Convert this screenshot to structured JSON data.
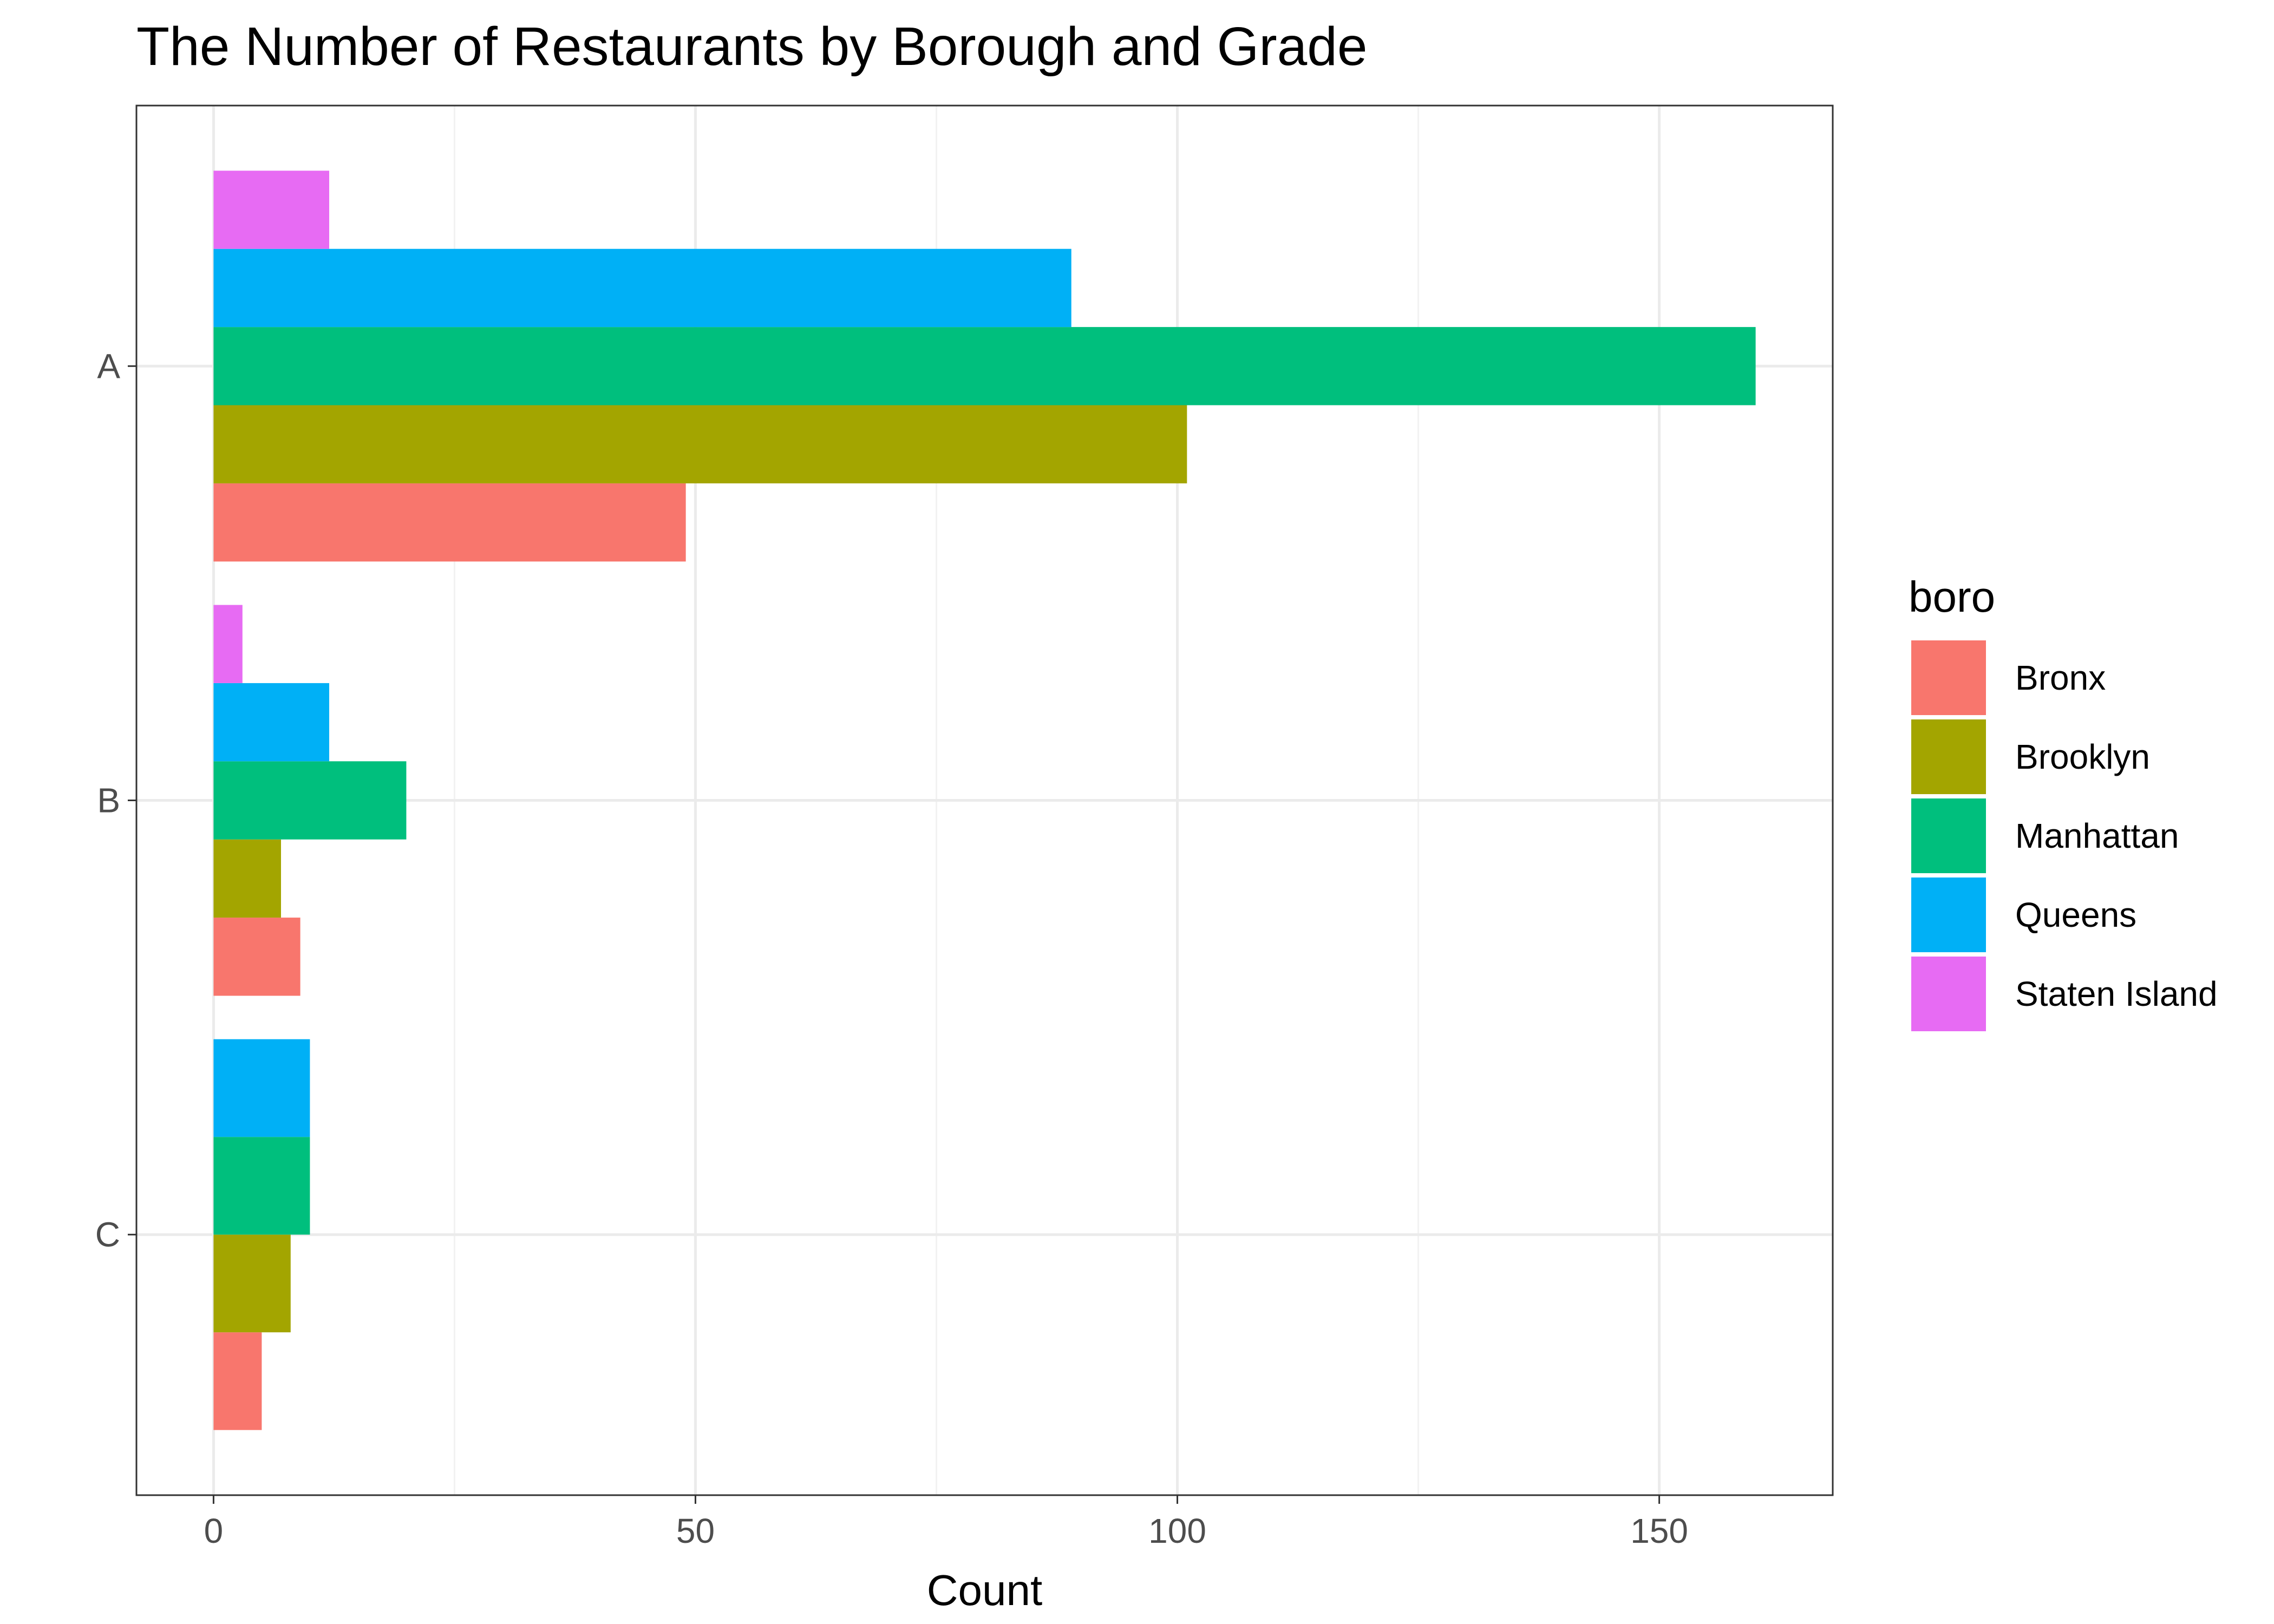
{
  "chart_data": {
    "type": "bar",
    "orientation": "horizontal",
    "title": "The Number of Restaurants by Borough and Grade",
    "xlabel": "Count",
    "ylabel": "",
    "categories": [
      "A",
      "B",
      "C"
    ],
    "xlim": [
      -8,
      168
    ],
    "xticks": [
      0,
      50,
      100,
      150
    ],
    "grid": true,
    "legend": {
      "title": "boro",
      "placement": "right"
    },
    "series": [
      {
        "name": "Bronx",
        "color": "#F8766D",
        "values": [
          49,
          9,
          5
        ]
      },
      {
        "name": "Brooklyn",
        "color": "#A3A500",
        "values": [
          101,
          7,
          8
        ]
      },
      {
        "name": "Manhattan",
        "color": "#00BF7D",
        "values": [
          160,
          20,
          10
        ]
      },
      {
        "name": "Queens",
        "color": "#00B0F6",
        "values": [
          89,
          12,
          10
        ]
      },
      {
        "name": "Staten Island",
        "color": "#E76BF3",
        "values": [
          12,
          3,
          null
        ]
      }
    ]
  }
}
